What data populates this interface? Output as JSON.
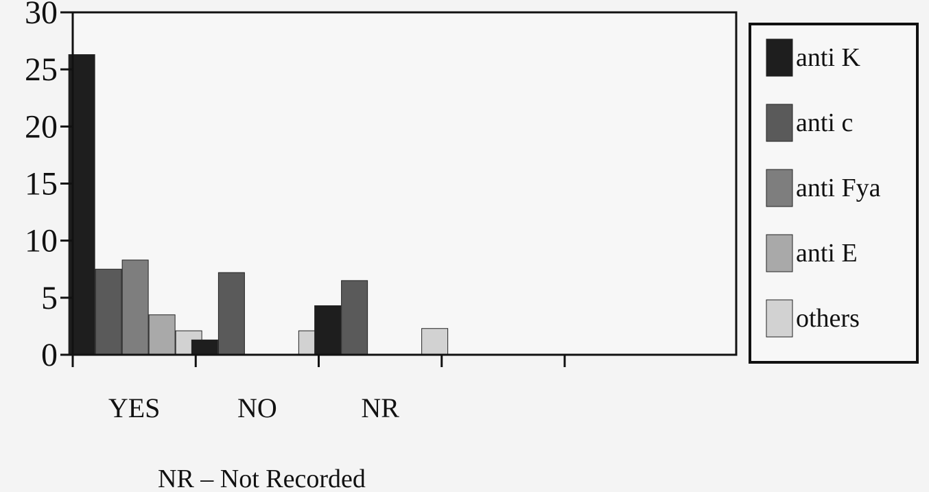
{
  "chart_data": {
    "type": "bar",
    "categories": [
      "YES",
      "NO",
      "NR"
    ],
    "series": [
      {
        "name": "anti K",
        "values": [
          26.3,
          1.3,
          4.3
        ],
        "color": "#1e1e1e"
      },
      {
        "name": "anti c",
        "values": [
          7.5,
          7.2,
          6.5
        ],
        "color": "#5a5a5a"
      },
      {
        "name": "anti Fya",
        "values": [
          8.3,
          0,
          0
        ],
        "color": "#7e7e7e"
      },
      {
        "name": "anti E",
        "values": [
          3.5,
          0,
          0
        ],
        "color": "#a9a9a9"
      },
      {
        "name": "others",
        "values": [
          2.1,
          2.1,
          2.3
        ],
        "color": "#d2d2d2"
      }
    ],
    "yticks": [
      0,
      5,
      10,
      15,
      20,
      25,
      30
    ],
    "ylim": [
      0,
      30
    ],
    "empty_slots": 1,
    "title": "",
    "xlabel": "",
    "ylabel": "",
    "legend": "right",
    "grid": false
  },
  "note": "NR – Not Recorded"
}
